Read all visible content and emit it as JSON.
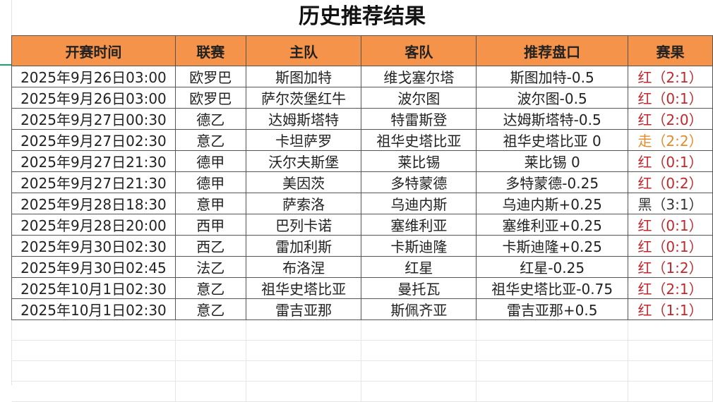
{
  "title": "历史推荐结果",
  "columns": [
    "开赛时间",
    "联赛",
    "主队",
    "客队",
    "推荐盘口",
    "赛果"
  ],
  "colors": {
    "header_bg": "#f5934a",
    "win": "#c0282d",
    "draw": "#e58a2c",
    "loss": "#333333"
  },
  "rows": [
    {
      "time": "2025年9月26日03:00",
      "league": "欧罗巴",
      "home": "斯图加特",
      "away": "维戈塞尔塔",
      "pick": "斯图加特-0.5",
      "result": "红（2:1）",
      "status": "red"
    },
    {
      "time": "2025年9月26日03:00",
      "league": "欧罗巴",
      "home": "萨尔茨堡红牛",
      "away": "波尔图",
      "pick": "波尔图-0.5",
      "result": "红（0:1）",
      "status": "red"
    },
    {
      "time": "2025年9月27日00:30",
      "league": "德乙",
      "home": "达姆斯塔特",
      "away": "特雷斯登",
      "pick": "达姆斯塔特-0.5",
      "result": "红（2:0）",
      "status": "red"
    },
    {
      "time": "2025年9月27日02:30",
      "league": "意乙",
      "home": "卡坦萨罗",
      "away": "祖华史塔比亚",
      "pick": "祖华史塔比亚 0",
      "result": "走（2:2）",
      "status": "orange"
    },
    {
      "time": "2025年9月27日21:30",
      "league": "德甲",
      "home": "沃尔夫斯堡",
      "away": "莱比锡",
      "pick": "莱比锡 0",
      "result": "红（0:1）",
      "status": "red"
    },
    {
      "time": "2025年9月27日21:30",
      "league": "德甲",
      "home": "美因茨",
      "away": "多特蒙德",
      "pick": "多特蒙德-0.25",
      "result": "红（0:2）",
      "status": "red"
    },
    {
      "time": "2025年9月28日18:30",
      "league": "意甲",
      "home": "萨索洛",
      "away": "乌迪内斯",
      "pick": "乌迪内斯+0.25",
      "result": "黑（3:1）",
      "status": "black"
    },
    {
      "time": "2025年9月28日20:00",
      "league": "西甲",
      "home": "巴列卡诺",
      "away": "塞维利亚",
      "pick": "塞维利亚+0.25",
      "result": "红（0:1）",
      "status": "red"
    },
    {
      "time": "2025年9月30日02:30",
      "league": "西乙",
      "home": "雷加利斯",
      "away": "卡斯迪隆",
      "pick": "卡斯迪隆+0.25",
      "result": "红（0:1）",
      "status": "red"
    },
    {
      "time": "2025年9月30日02:45",
      "league": "法乙",
      "home": "布洛涅",
      "away": "红星",
      "pick": "红星-0.25",
      "result": "红（1:2）",
      "status": "red"
    },
    {
      "time": "2025年10月1日02:30",
      "league": "意乙",
      "home": "祖华史塔比亚",
      "away": "曼托瓦",
      "pick": "祖华史塔比亚-0.75",
      "result": "红（2:1）",
      "status": "red"
    },
    {
      "time": "2025年10月1日02:30",
      "league": "意乙",
      "home": "雷吉亚那",
      "away": "斯佩齐亚",
      "pick": "雷吉亚那+0.5",
      "result": "红（1:1）",
      "status": "red"
    }
  ]
}
